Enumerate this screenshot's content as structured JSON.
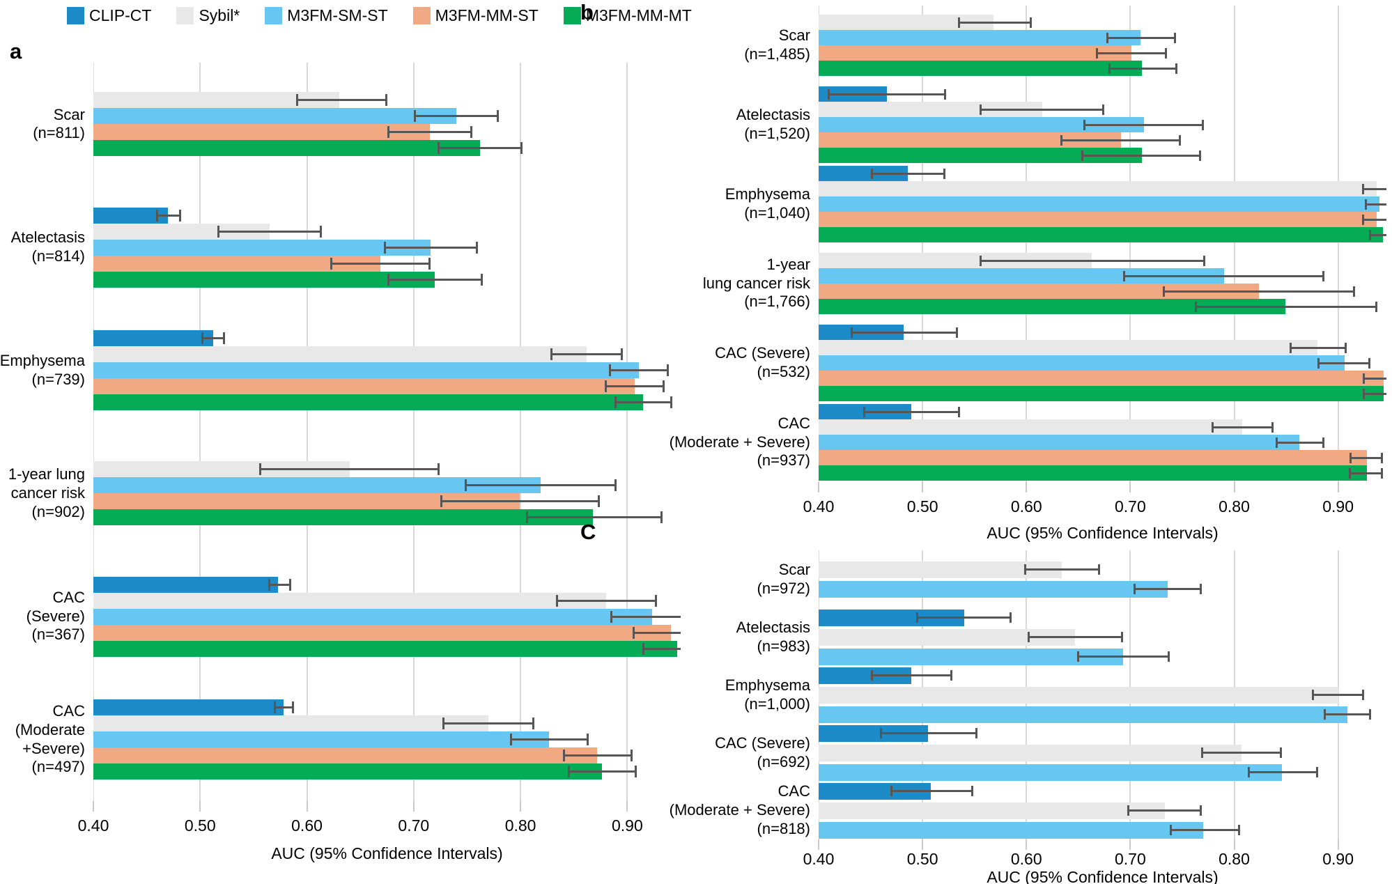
{
  "legend": {
    "items": [
      {
        "label": "CLIP-CT",
        "color": "#1d8bc8"
      },
      {
        "label": "Sybil*",
        "color": "#e8e8e8"
      },
      {
        "label": "M3FM-SM-ST",
        "color": "#67c7f0"
      },
      {
        "label": "M3FM-MM-ST",
        "color": "#f1a983"
      },
      {
        "label": "M3FM-MM-MT",
        "color": "#06ab56"
      }
    ]
  },
  "axis": {
    "tick_values": [
      0.4,
      0.5,
      0.6,
      0.7,
      0.8,
      0.9
    ],
    "tick_labels": [
      "0.40",
      "0.50",
      "0.60",
      "0.70",
      "0.80",
      "0.90"
    ],
    "xlabel": "AUC (95% Confidence Intervals)"
  },
  "styles": {
    "error_bar_color": "#565656",
    "gridline_color": "#d8d8d8",
    "tick_color": "#c9c9c9"
  },
  "chart_data": [
    {
      "panel_label": "a",
      "type": "bar",
      "xlim": [
        0.4,
        0.95
      ],
      "xlabel": "AUC (95% Confidence Intervals)",
      "legend_position": "top-left",
      "grid": true,
      "groups": [
        {
          "label": "Scar\n(n=811)",
          "bars": [
            {
              "series": "Sybil*",
              "auc": 0.63,
              "ci": [
                0.59,
                0.675
              ]
            },
            {
              "series": "M3FM-SM-ST",
              "auc": 0.74,
              "ci": [
                0.7,
                0.78
              ]
            },
            {
              "series": "M3FM-MM-ST",
              "auc": 0.715,
              "ci": [
                0.675,
                0.755
              ]
            },
            {
              "series": "M3FM-MM-MT",
              "auc": 0.762,
              "ci": [
                0.722,
                0.802
              ]
            }
          ]
        },
        {
          "label": "Atelectasis\n(n=814)",
          "bars": [
            {
              "series": "CLIP-CT",
              "auc": 0.47,
              "ci": [
                0.459,
                0.482
              ]
            },
            {
              "series": "Sybil*",
              "auc": 0.565,
              "ci": [
                0.516,
                0.614
              ]
            },
            {
              "series": "M3FM-SM-ST",
              "auc": 0.716,
              "ci": [
                0.672,
                0.76
              ]
            },
            {
              "series": "M3FM-MM-ST",
              "auc": 0.669,
              "ci": [
                0.622,
                0.716
              ]
            },
            {
              "series": "M3FM-MM-MT",
              "auc": 0.72,
              "ci": [
                0.675,
                0.765
              ]
            }
          ]
        },
        {
          "label": "Emphysema\n(n=739)",
          "bars": [
            {
              "series": "CLIP-CT",
              "auc": 0.512,
              "ci": [
                0.501,
                0.523
              ]
            },
            {
              "series": "Sybil*",
              "auc": 0.862,
              "ci": [
                0.828,
                0.896
              ]
            },
            {
              "series": "M3FM-SM-ST",
              "auc": 0.911,
              "ci": [
                0.883,
                0.939
              ]
            },
            {
              "series": "M3FM-MM-ST",
              "auc": 0.907,
              "ci": [
                0.879,
                0.935
              ]
            },
            {
              "series": "M3FM-MM-MT",
              "auc": 0.915,
              "ci": [
                0.888,
                0.942
              ]
            }
          ]
        },
        {
          "label": "1-year lung\ncancer risk\n(n=902)",
          "bars": [
            {
              "series": "Sybil*",
              "auc": 0.64,
              "ci": [
                0.555,
                0.724
              ]
            },
            {
              "series": "M3FM-SM-ST",
              "auc": 0.819,
              "ci": [
                0.748,
                0.89
              ]
            },
            {
              "series": "M3FM-MM-ST",
              "auc": 0.799,
              "ci": [
                0.725,
                0.874
              ]
            },
            {
              "series": "M3FM-MM-MT",
              "auc": 0.868,
              "ci": [
                0.805,
                0.933
              ]
            }
          ]
        },
        {
          "label": "CAC\n(Severe)\n(n=367)",
          "bars": [
            {
              "series": "CLIP-CT",
              "auc": 0.573,
              "ci": [
                0.564,
                0.585
              ]
            },
            {
              "series": "Sybil*",
              "auc": 0.88,
              "ci": [
                0.833,
                0.928
              ]
            },
            {
              "series": "M3FM-SM-ST",
              "auc": 0.923,
              "ci": [
                0.884,
                0.957
              ]
            },
            {
              "series": "M3FM-MM-ST",
              "auc": 0.941,
              "ci": [
                0.905,
                0.96
              ]
            },
            {
              "series": "M3FM-MM-MT",
              "auc": 0.947,
              "ci": [
                0.914,
                0.96
              ]
            }
          ]
        },
        {
          "label": "CAC\n(Moderate\n+Severe)\n(n=497)",
          "bars": [
            {
              "series": "CLIP-CT",
              "auc": 0.578,
              "ci": [
                0.569,
                0.588
              ]
            },
            {
              "series": "Sybil*",
              "auc": 0.77,
              "ci": [
                0.727,
                0.813
              ]
            },
            {
              "series": "M3FM-SM-ST",
              "auc": 0.827,
              "ci": [
                0.79,
                0.864
              ]
            },
            {
              "series": "M3FM-MM-ST",
              "auc": 0.872,
              "ci": [
                0.84,
                0.905
              ]
            },
            {
              "series": "M3FM-MM-MT",
              "auc": 0.876,
              "ci": [
                0.844,
                0.909
              ]
            }
          ]
        }
      ]
    },
    {
      "panel_label": "b",
      "type": "bar",
      "xlim": [
        0.4,
        0.9465
      ],
      "xlabel": "AUC (95% Confidence Intervals)",
      "grid": true,
      "groups": [
        {
          "label": "Scar\n(n=1,485)",
          "bars": [
            {
              "series": "Sybil*",
              "auc": 0.568,
              "ci": [
                0.534,
                0.605
              ]
            },
            {
              "series": "M3FM-SM-ST",
              "auc": 0.71,
              "ci": [
                0.677,
                0.744
              ]
            },
            {
              "series": "M3FM-MM-ST",
              "auc": 0.701,
              "ci": [
                0.667,
                0.735
              ]
            },
            {
              "series": "M3FM-MM-MT",
              "auc": 0.711,
              "ci": [
                0.679,
                0.745
              ]
            }
          ]
        },
        {
          "label": "Atelectasis\n(n=1,520)",
          "bars": [
            {
              "series": "CLIP-CT",
              "auc": 0.466,
              "ci": [
                0.409,
                0.523
              ]
            },
            {
              "series": "Sybil*",
              "auc": 0.615,
              "ci": [
                0.555,
                0.675
              ]
            },
            {
              "series": "M3FM-SM-ST",
              "auc": 0.713,
              "ci": [
                0.655,
                0.771
              ]
            },
            {
              "series": "M3FM-MM-ST",
              "auc": 0.691,
              "ci": [
                0.633,
                0.749
              ]
            },
            {
              "series": "M3FM-MM-MT",
              "auc": 0.711,
              "ci": [
                0.653,
                0.768
              ]
            }
          ]
        },
        {
          "label": "Emphysema\n(n=1,040)",
          "bars": [
            {
              "series": "CLIP-CT",
              "auc": 0.486,
              "ci": [
                0.45,
                0.522
              ]
            },
            {
              "series": "Sybil*",
              "auc": 0.937,
              "ci": [
                0.923,
                0.952
              ]
            },
            {
              "series": "M3FM-SM-ST",
              "auc": 0.94,
              "ci": [
                0.926,
                0.953
              ]
            },
            {
              "series": "M3FM-MM-ST",
              "auc": 0.937,
              "ci": [
                0.923,
                0.952
              ]
            },
            {
              "series": "M3FM-MM-MT",
              "auc": 0.943,
              "ci": [
                0.93,
                0.955
              ]
            }
          ]
        },
        {
          "label": "1-year\nlung cancer risk\n(n=1,766)",
          "bars": [
            {
              "series": "Sybil*",
              "auc": 0.663,
              "ci": [
                0.555,
                0.772
              ]
            },
            {
              "series": "M3FM-SM-ST",
              "auc": 0.79,
              "ci": [
                0.693,
                0.887
              ]
            },
            {
              "series": "M3FM-MM-ST",
              "auc": 0.824,
              "ci": [
                0.731,
                0.916
              ]
            },
            {
              "series": "M3FM-MM-MT",
              "auc": 0.849,
              "ci": [
                0.762,
                0.938
              ]
            }
          ]
        },
        {
          "label": "CAC (Severe)\n(n=532)",
          "bars": [
            {
              "series": "CLIP-CT",
              "auc": 0.482,
              "ci": [
                0.431,
                0.534
              ]
            },
            {
              "series": "Sybil*",
              "auc": 0.88,
              "ci": [
                0.853,
                0.908
              ]
            },
            {
              "series": "M3FM-SM-ST",
              "auc": 0.906,
              "ci": [
                0.88,
                0.931
              ]
            },
            {
              "series": "M3FM-MM-ST",
              "auc": 0.944,
              "ci": [
                0.924,
                0.96
              ]
            },
            {
              "series": "M3FM-MM-MT",
              "auc": 0.944,
              "ci": [
                0.924,
                0.96
              ]
            }
          ]
        },
        {
          "label": "CAC\n(Moderate + Severe)\n(n=937)",
          "bars": [
            {
              "series": "CLIP-CT",
              "auc": 0.489,
              "ci": [
                0.443,
                0.536
              ]
            },
            {
              "series": "Sybil*",
              "auc": 0.808,
              "ci": [
                0.778,
                0.838
              ]
            },
            {
              "series": "M3FM-SM-ST",
              "auc": 0.863,
              "ci": [
                0.84,
                0.887
              ]
            },
            {
              "series": "M3FM-MM-ST",
              "auc": 0.928,
              "ci": [
                0.911,
                0.943
              ]
            },
            {
              "series": "M3FM-MM-MT",
              "auc": 0.928,
              "ci": [
                0.91,
                0.943
              ]
            }
          ]
        }
      ]
    },
    {
      "panel_label": "C",
      "type": "bar",
      "xlim": [
        0.4,
        0.9465
      ],
      "xlabel": "AUC (95% Confidence Intervals)",
      "grid": true,
      "groups": [
        {
          "label": "Scar\n(n=972)",
          "bars": [
            {
              "series": "Sybil*",
              "auc": 0.634,
              "ci": [
                0.598,
                0.671
              ]
            },
            {
              "series": "M3FM-SM-ST",
              "auc": 0.736,
              "ci": [
                0.703,
                0.769
              ]
            }
          ]
        },
        {
          "label": "Atelectasis\n(n=983)",
          "bars": [
            {
              "series": "CLIP-CT",
              "auc": 0.54,
              "ci": [
                0.494,
                0.586
              ]
            },
            {
              "series": "Sybil*",
              "auc": 0.647,
              "ci": [
                0.601,
                0.693
              ]
            },
            {
              "series": "M3FM-SM-ST",
              "auc": 0.693,
              "ci": [
                0.649,
                0.738
              ]
            }
          ]
        },
        {
          "label": "Emphysema\n(n=1,000)",
          "bars": [
            {
              "series": "CLIP-CT",
              "auc": 0.489,
              "ci": [
                0.45,
                0.529
              ]
            },
            {
              "series": "Sybil*",
              "auc": 0.9,
              "ci": [
                0.875,
                0.925
              ]
            },
            {
              "series": "M3FM-SM-ST",
              "auc": 0.909,
              "ci": [
                0.886,
                0.932
              ]
            }
          ]
        },
        {
          "label": "CAC (Severe)\n(n=692)",
          "bars": [
            {
              "series": "CLIP-CT",
              "auc": 0.505,
              "ci": [
                0.459,
                0.553
              ]
            },
            {
              "series": "Sybil*",
              "auc": 0.807,
              "ci": [
                0.768,
                0.846
              ]
            },
            {
              "series": "M3FM-SM-ST",
              "auc": 0.846,
              "ci": [
                0.813,
                0.881
              ]
            }
          ]
        },
        {
          "label": "CAC\n(Moderate + Severe)\n(n=818)",
          "bars": [
            {
              "series": "CLIP-CT",
              "auc": 0.508,
              "ci": [
                0.469,
                0.549
              ]
            },
            {
              "series": "Sybil*",
              "auc": 0.733,
              "ci": [
                0.697,
                0.769
              ]
            },
            {
              "series": "M3FM-SM-ST",
              "auc": 0.77,
              "ci": [
                0.738,
                0.806
              ]
            }
          ]
        }
      ]
    }
  ]
}
